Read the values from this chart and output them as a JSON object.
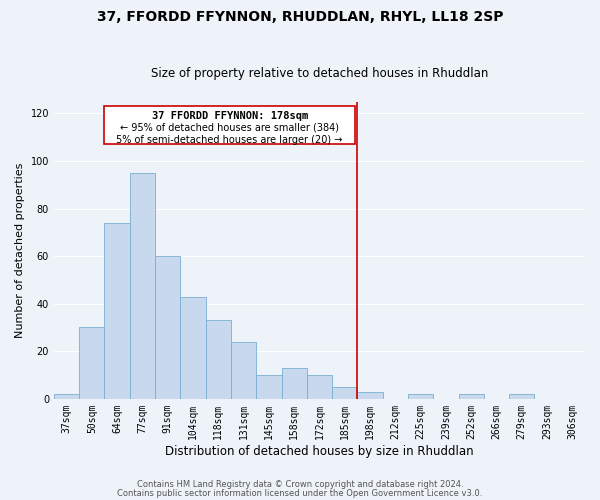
{
  "title": "37, FFORDD FFYNNON, RHUDDLAN, RHYL, LL18 2SP",
  "subtitle": "Size of property relative to detached houses in Rhuddlan",
  "xlabel": "Distribution of detached houses by size in Rhuddlan",
  "ylabel": "Number of detached properties",
  "bar_labels": [
    "37sqm",
    "50sqm",
    "64sqm",
    "77sqm",
    "91sqm",
    "104sqm",
    "118sqm",
    "131sqm",
    "145sqm",
    "158sqm",
    "172sqm",
    "185sqm",
    "198sqm",
    "212sqm",
    "225sqm",
    "239sqm",
    "252sqm",
    "266sqm",
    "279sqm",
    "293sqm",
    "306sqm"
  ],
  "bar_values": [
    2,
    30,
    74,
    95,
    60,
    43,
    33,
    24,
    10,
    13,
    10,
    5,
    3,
    0,
    2,
    0,
    2,
    0,
    2,
    0,
    0
  ],
  "bar_color": "#c8d9ed",
  "bar_edge_color": "#7aafd4",
  "vline_x": 11.5,
  "vline_color": "#cc0000",
  "annotation_title": "37 FFORDD FFYNNON: 178sqm",
  "annotation_line1": "← 95% of detached houses are smaller (384)",
  "annotation_line2": "5% of semi-detached houses are larger (20) →",
  "annotation_box_color": "#ffffff",
  "annotation_box_edge": "#cc0000",
  "ylim": [
    0,
    125
  ],
  "yticks": [
    0,
    20,
    40,
    60,
    80,
    100,
    120
  ],
  "footer1": "Contains HM Land Registry data © Crown copyright and database right 2024.",
  "footer2": "Contains public sector information licensed under the Open Government Licence v3.0.",
  "bg_color": "#eef2f9",
  "grid_color": "#ffffff",
  "title_fontsize": 10,
  "subtitle_fontsize": 8.5,
  "ylabel_fontsize": 8,
  "xlabel_fontsize": 8.5,
  "tick_fontsize": 7,
  "ann_title_fontsize": 7.5,
  "ann_text_fontsize": 7,
  "footer_fontsize": 6
}
